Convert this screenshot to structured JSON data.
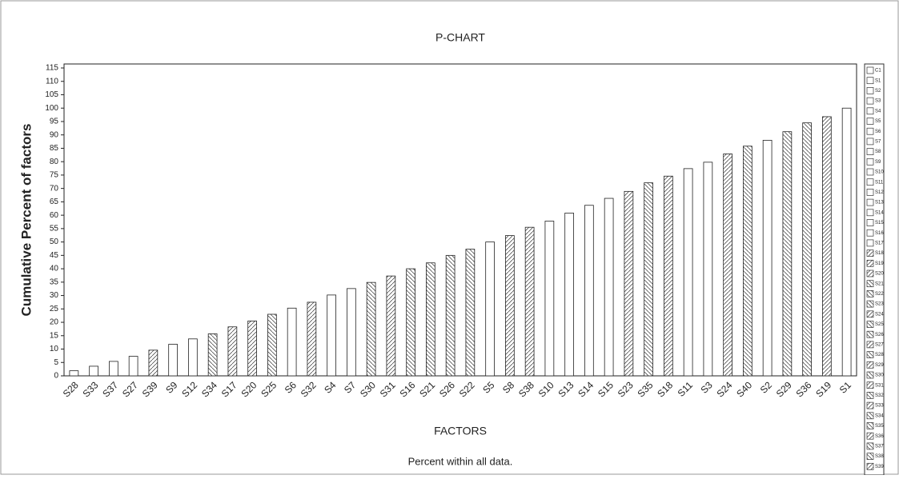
{
  "chart_data": {
    "type": "bar",
    "title": "P-CHART",
    "subtitle": "Percent within all data.",
    "x_label": "FACTORS",
    "y_label": "Cumulative Percent of factors",
    "categories": [
      "S28",
      "S33",
      "S37",
      "S27",
      "S39",
      "S9",
      "S12",
      "S34",
      "S17",
      "S20",
      "S25",
      "S6",
      "S32",
      "S4",
      "S7",
      "S30",
      "S31",
      "S16",
      "S21",
      "S26",
      "S22",
      "S5",
      "S8",
      "S38",
      "S10",
      "S13",
      "S14",
      "S15",
      "S23",
      "S35",
      "S18",
      "S11",
      "S3",
      "S24",
      "S40",
      "S2",
      "S29",
      "S36",
      "S19",
      "S1"
    ],
    "values": [
      1.9,
      3.6,
      5.4,
      7.3,
      9.6,
      11.8,
      13.8,
      15.7,
      18.3,
      20.5,
      23,
      25.3,
      27.5,
      30.2,
      32.6,
      34.9,
      37.3,
      40,
      42.2,
      45,
      47.3,
      50,
      52.4,
      55.5,
      57.8,
      60.8,
      63.7,
      66.3,
      68.9,
      72.1,
      74.6,
      77.4,
      79.8,
      82.9,
      85.8,
      88,
      91.2,
      94.5,
      96.8,
      100
    ],
    "hatch": [
      "none",
      "none",
      "none",
      "none",
      "fwd",
      "none",
      "none",
      "back",
      "fwd",
      "fwd",
      "back",
      "none",
      "fwd",
      "none",
      "none",
      "back",
      "fwd",
      "back",
      "back",
      "back",
      "back",
      "none",
      "fwd",
      "fwd",
      "none",
      "none",
      "none",
      "none",
      "fwd",
      "back",
      "fwd",
      "none",
      "none",
      "fwd",
      "back",
      "none",
      "back",
      "back",
      "fwd",
      "none"
    ],
    "color": "#ffffff",
    "ylim": [
      0,
      115
    ],
    "yticks": [
      0,
      5,
      10,
      15,
      20,
      25,
      30,
      35,
      40,
      45,
      50,
      55,
      60,
      65,
      70,
      75,
      80,
      85,
      90,
      95,
      100,
      105,
      110,
      115
    ],
    "legend": [
      "C1",
      "S1",
      "S2",
      "S3",
      "S4",
      "S5",
      "S6",
      "S7",
      "S8",
      "S9",
      "S10",
      "S11",
      "S12",
      "S13",
      "S14",
      "S15",
      "S16",
      "S17",
      "S18",
      "S19",
      "S20",
      "S21",
      "S22",
      "S23",
      "S24",
      "S25",
      "S26",
      "S27",
      "S28",
      "S29",
      "S30",
      "S31",
      "S32",
      "S33",
      "S34",
      "S35",
      "S36",
      "S37",
      "S38",
      "S39"
    ],
    "legend_hatch": [
      "none",
      "none",
      "none",
      "none",
      "none",
      "none",
      "none",
      "none",
      "none",
      "none",
      "none",
      "none",
      "none",
      "none",
      "none",
      "none",
      "none",
      "none",
      "fwd",
      "fwd",
      "fwd",
      "back",
      "back",
      "back",
      "fwd",
      "back",
      "back",
      "fwd",
      "back",
      "fwd",
      "back",
      "fwd",
      "back",
      "fwd",
      "back",
      "back",
      "fwd",
      "back",
      "back",
      "fwd"
    ]
  }
}
